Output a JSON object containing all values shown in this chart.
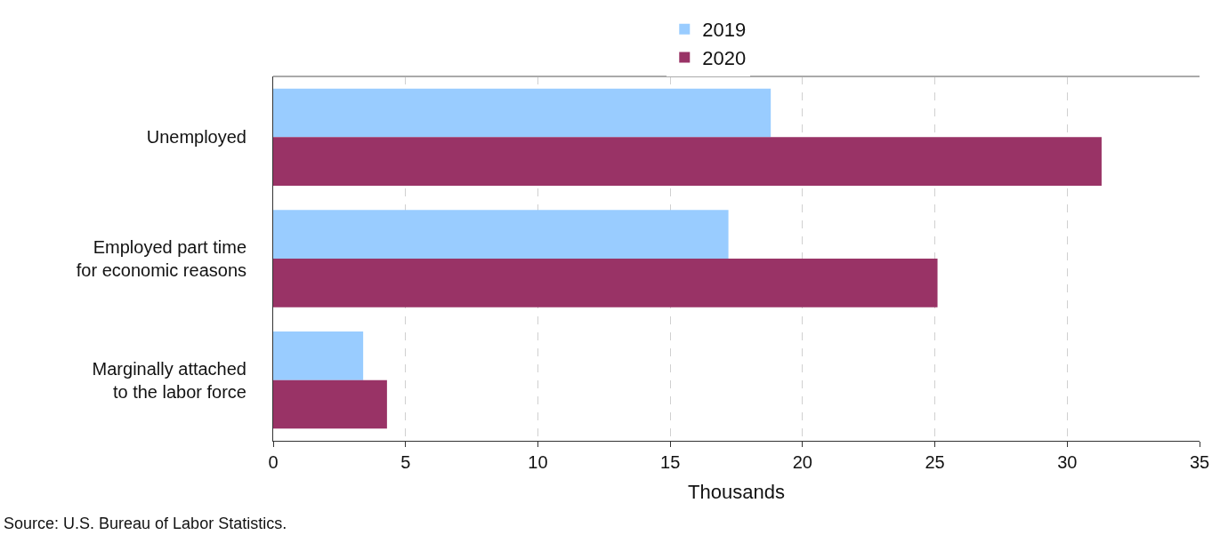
{
  "chart_data": {
    "type": "bar",
    "orientation": "horizontal",
    "xlabel": "Thousands",
    "categories": [
      "Unemployed",
      "Employed part time\nfor economic reasons",
      "Marginally attached\nto the labor force"
    ],
    "series": [
      {
        "name": "2019",
        "color": "#99ccff",
        "values": [
          18.8,
          17.2,
          3.4
        ]
      },
      {
        "name": "2020",
        "color": "#993366",
        "values": [
          31.3,
          25.1,
          4.3
        ]
      }
    ],
    "xlim": [
      0,
      35
    ],
    "xticks": [
      0,
      5,
      10,
      15,
      20,
      25,
      30,
      35
    ],
    "grid": "x",
    "legend": "top",
    "annotations": [
      "Source: U.S. Bureau of Labor Statistics."
    ]
  }
}
